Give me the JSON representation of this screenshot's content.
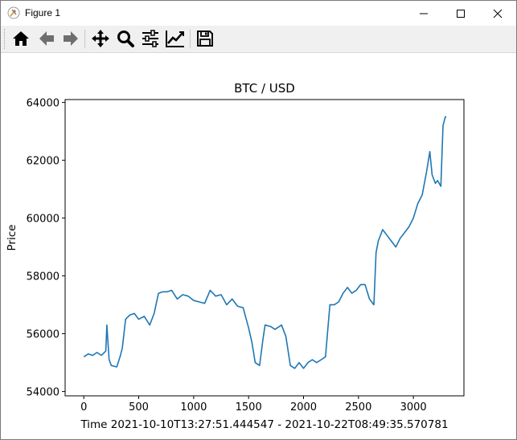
{
  "window": {
    "title": "Figure 1"
  },
  "toolbar": {
    "buttons": [
      {
        "name": "home-button",
        "icon": "home-icon"
      },
      {
        "name": "back-button",
        "icon": "arrow-left-icon"
      },
      {
        "name": "forward-button",
        "icon": "arrow-right-icon"
      },
      {
        "name": "pan-button",
        "icon": "move-icon"
      },
      {
        "name": "zoom-button",
        "icon": "magnifier-icon"
      },
      {
        "name": "subplots-button",
        "icon": "sliders-icon"
      },
      {
        "name": "axes-edit-button",
        "icon": "line-chart-icon"
      },
      {
        "name": "save-button",
        "icon": "floppy-disk-icon"
      }
    ]
  },
  "chart_data": {
    "type": "line",
    "title": "BTC / USD",
    "xlabel": "Time 2021-10-10T13:27:51.444547 - 2021-10-22T08:49:35.570781",
    "ylabel": "Price",
    "xlim": [
      -170,
      3460
    ],
    "ylim": [
      53850,
      64100
    ],
    "xticks": [
      0,
      500,
      1000,
      1500,
      2000,
      2500,
      3000
    ],
    "xtick_labels": [
      "0",
      "500",
      "1000",
      "1500",
      "2000",
      "2500",
      "3000"
    ],
    "yticks": [
      54000,
      56000,
      58000,
      60000,
      62000,
      64000
    ],
    "ytick_labels": [
      "54000",
      "56000",
      "58000",
      "60000",
      "62000",
      "64000"
    ],
    "grid": false,
    "color": "#1f77b4",
    "series": [
      {
        "x": [
          0,
          40,
          80,
          120,
          160,
          200,
          210,
          230,
          250,
          300,
          330,
          350,
          380,
          420,
          460,
          500,
          550,
          600,
          640,
          680,
          720,
          760,
          800,
          850,
          900,
          950,
          1000,
          1050,
          1100,
          1150,
          1200,
          1250,
          1300,
          1350,
          1400,
          1450,
          1500,
          1530,
          1560,
          1600,
          1630,
          1650,
          1700,
          1740,
          1800,
          1840,
          1880,
          1920,
          1960,
          2000,
          2040,
          2080,
          2120,
          2160,
          2200,
          2240,
          2280,
          2320,
          2360,
          2400,
          2440,
          2480,
          2520,
          2560,
          2600,
          2640,
          2660,
          2680,
          2720,
          2760,
          2800,
          2840,
          2880,
          2920,
          2960,
          3000,
          3040,
          3080,
          3120,
          3150,
          3170,
          3200,
          3220,
          3250,
          3270,
          3290,
          3300
        ],
        "y": [
          55200,
          55300,
          55250,
          55350,
          55250,
          55400,
          56300,
          55100,
          54900,
          54850,
          55200,
          55500,
          56500,
          56650,
          56700,
          56500,
          56600,
          56300,
          56700,
          57400,
          57450,
          57450,
          57500,
          57200,
          57350,
          57300,
          57150,
          57100,
          57050,
          57500,
          57300,
          57350,
          57000,
          57200,
          56950,
          56900,
          56200,
          55700,
          55000,
          54900,
          55800,
          56300,
          56250,
          56150,
          56300,
          55900,
          54900,
          54800,
          55000,
          54800,
          55000,
          55100,
          55000,
          55100,
          55200,
          57000,
          57000,
          57100,
          57400,
          57600,
          57400,
          57500,
          57700,
          57700,
          57200,
          57000,
          58800,
          59200,
          59600,
          59400,
          59200,
          59000,
          59300,
          59500,
          59700,
          60000,
          60500,
          60800,
          61600,
          62300,
          61500,
          61200,
          61300,
          61100,
          63200,
          63500,
          63500
        ]
      }
    ]
  }
}
